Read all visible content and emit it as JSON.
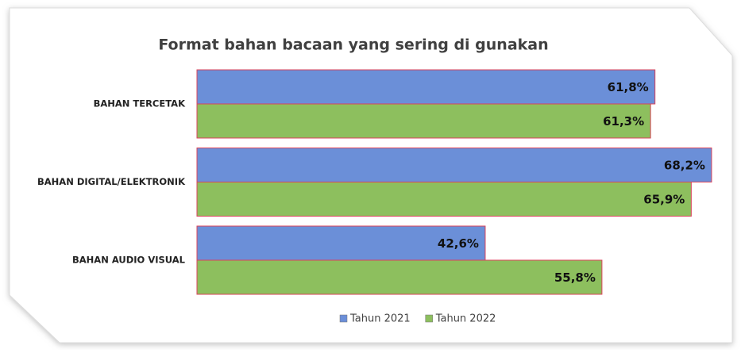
{
  "chart_data": {
    "type": "bar",
    "orientation": "horizontal",
    "title": "Format bahan bacaan yang sering di gunakan",
    "categories": [
      "BAHAN TERCETAK",
      "BAHAN DIGITAL/ELEKTRONIK",
      "BAHAN AUDIO VISUAL"
    ],
    "series": [
      {
        "name": "Tahun 2021",
        "color": "#6b8fd8",
        "values": [
          61.8,
          68.2,
          42.6
        ],
        "value_labels": [
          "61,8%",
          "68,2%",
          "42,6%"
        ]
      },
      {
        "name": "Tahun 2022",
        "color": "#8dbf5e",
        "values": [
          61.3,
          65.9,
          55.8
        ],
        "value_labels": [
          "61,3%",
          "65,9%",
          "55,8%"
        ]
      }
    ],
    "xlim": [
      10,
      70
    ],
    "legend": "bottom"
  }
}
